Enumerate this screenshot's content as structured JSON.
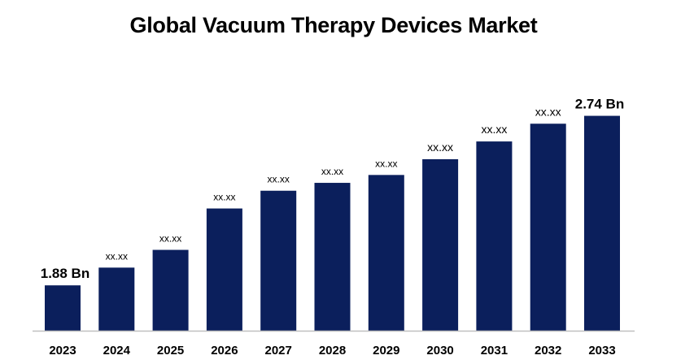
{
  "chart_data": {
    "type": "bar",
    "title": "Global Vacuum Therapy Devices Market",
    "xlabel": "",
    "ylabel": "",
    "categories": [
      "2023",
      "2024",
      "2025",
      "2026",
      "2027",
      "2028",
      "2029",
      "2030",
      "2031",
      "2032",
      "2033"
    ],
    "values": [
      1.88,
      1.97,
      2.06,
      2.27,
      2.36,
      2.4,
      2.44,
      2.52,
      2.61,
      2.7,
      2.74
    ],
    "data_labels": [
      "1.88 Bn",
      "xx.xx",
      "xx.xx",
      "xx.xx",
      "xx.xx",
      "xx.xx",
      "xx.xx",
      "xx.xx",
      "xx.xx",
      "xx.xx",
      "2.74 Bn"
    ],
    "ylim": [
      1.65,
      2.8
    ],
    "grid": false,
    "legend": "none",
    "colors": {
      "bar": "#0b1f5c",
      "axis": "#bfbfbf",
      "text": "#000000"
    }
  }
}
